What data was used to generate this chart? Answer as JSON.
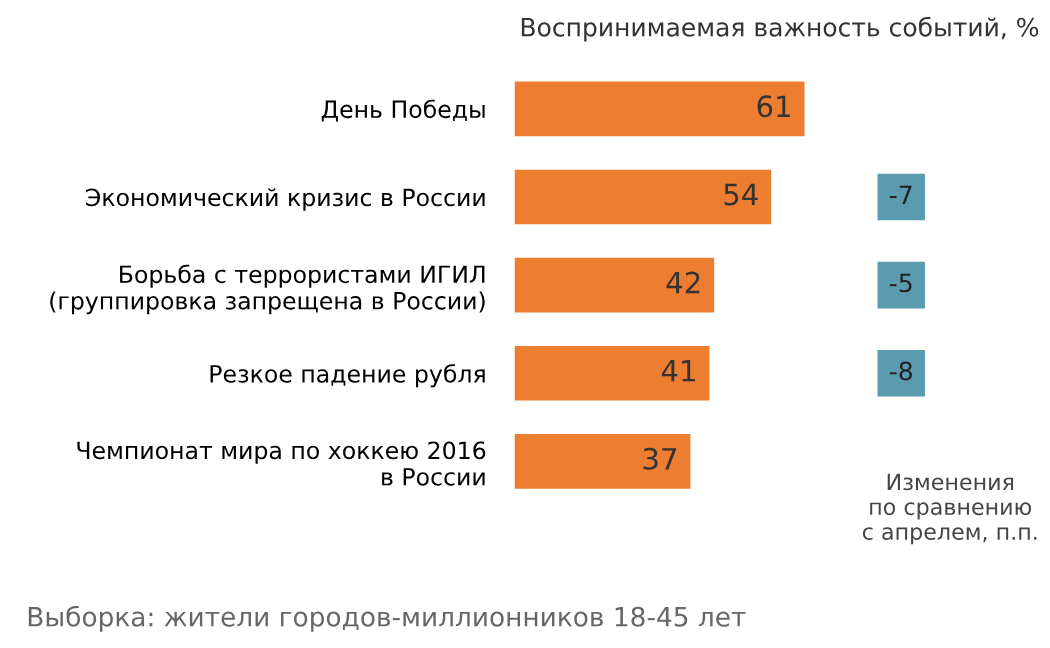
{
  "chart_data": {
    "type": "bar",
    "orientation": "horizontal",
    "title": "Воспринимаемая важность событий, %",
    "categories": [
      "День Победы",
      "Экономический кризис в России",
      "Борьба с террористами ИГИЛ\n(группировка запрещена в России)",
      "Резкое падение рубля",
      "Чемпионат мира по хоккею 2016\nв России"
    ],
    "values": [
      61,
      54,
      42,
      41,
      37
    ],
    "color": "#ed7d31",
    "data_labels": true,
    "tick_labels": "y",
    "annotations": [
      "-7",
      "-5",
      "-8",
      "Изменения\nпо сравнению\nс апрелем, п.п.",
      "Выборка: жители городов-миллионников 18-45 лет"
    ]
  }
}
